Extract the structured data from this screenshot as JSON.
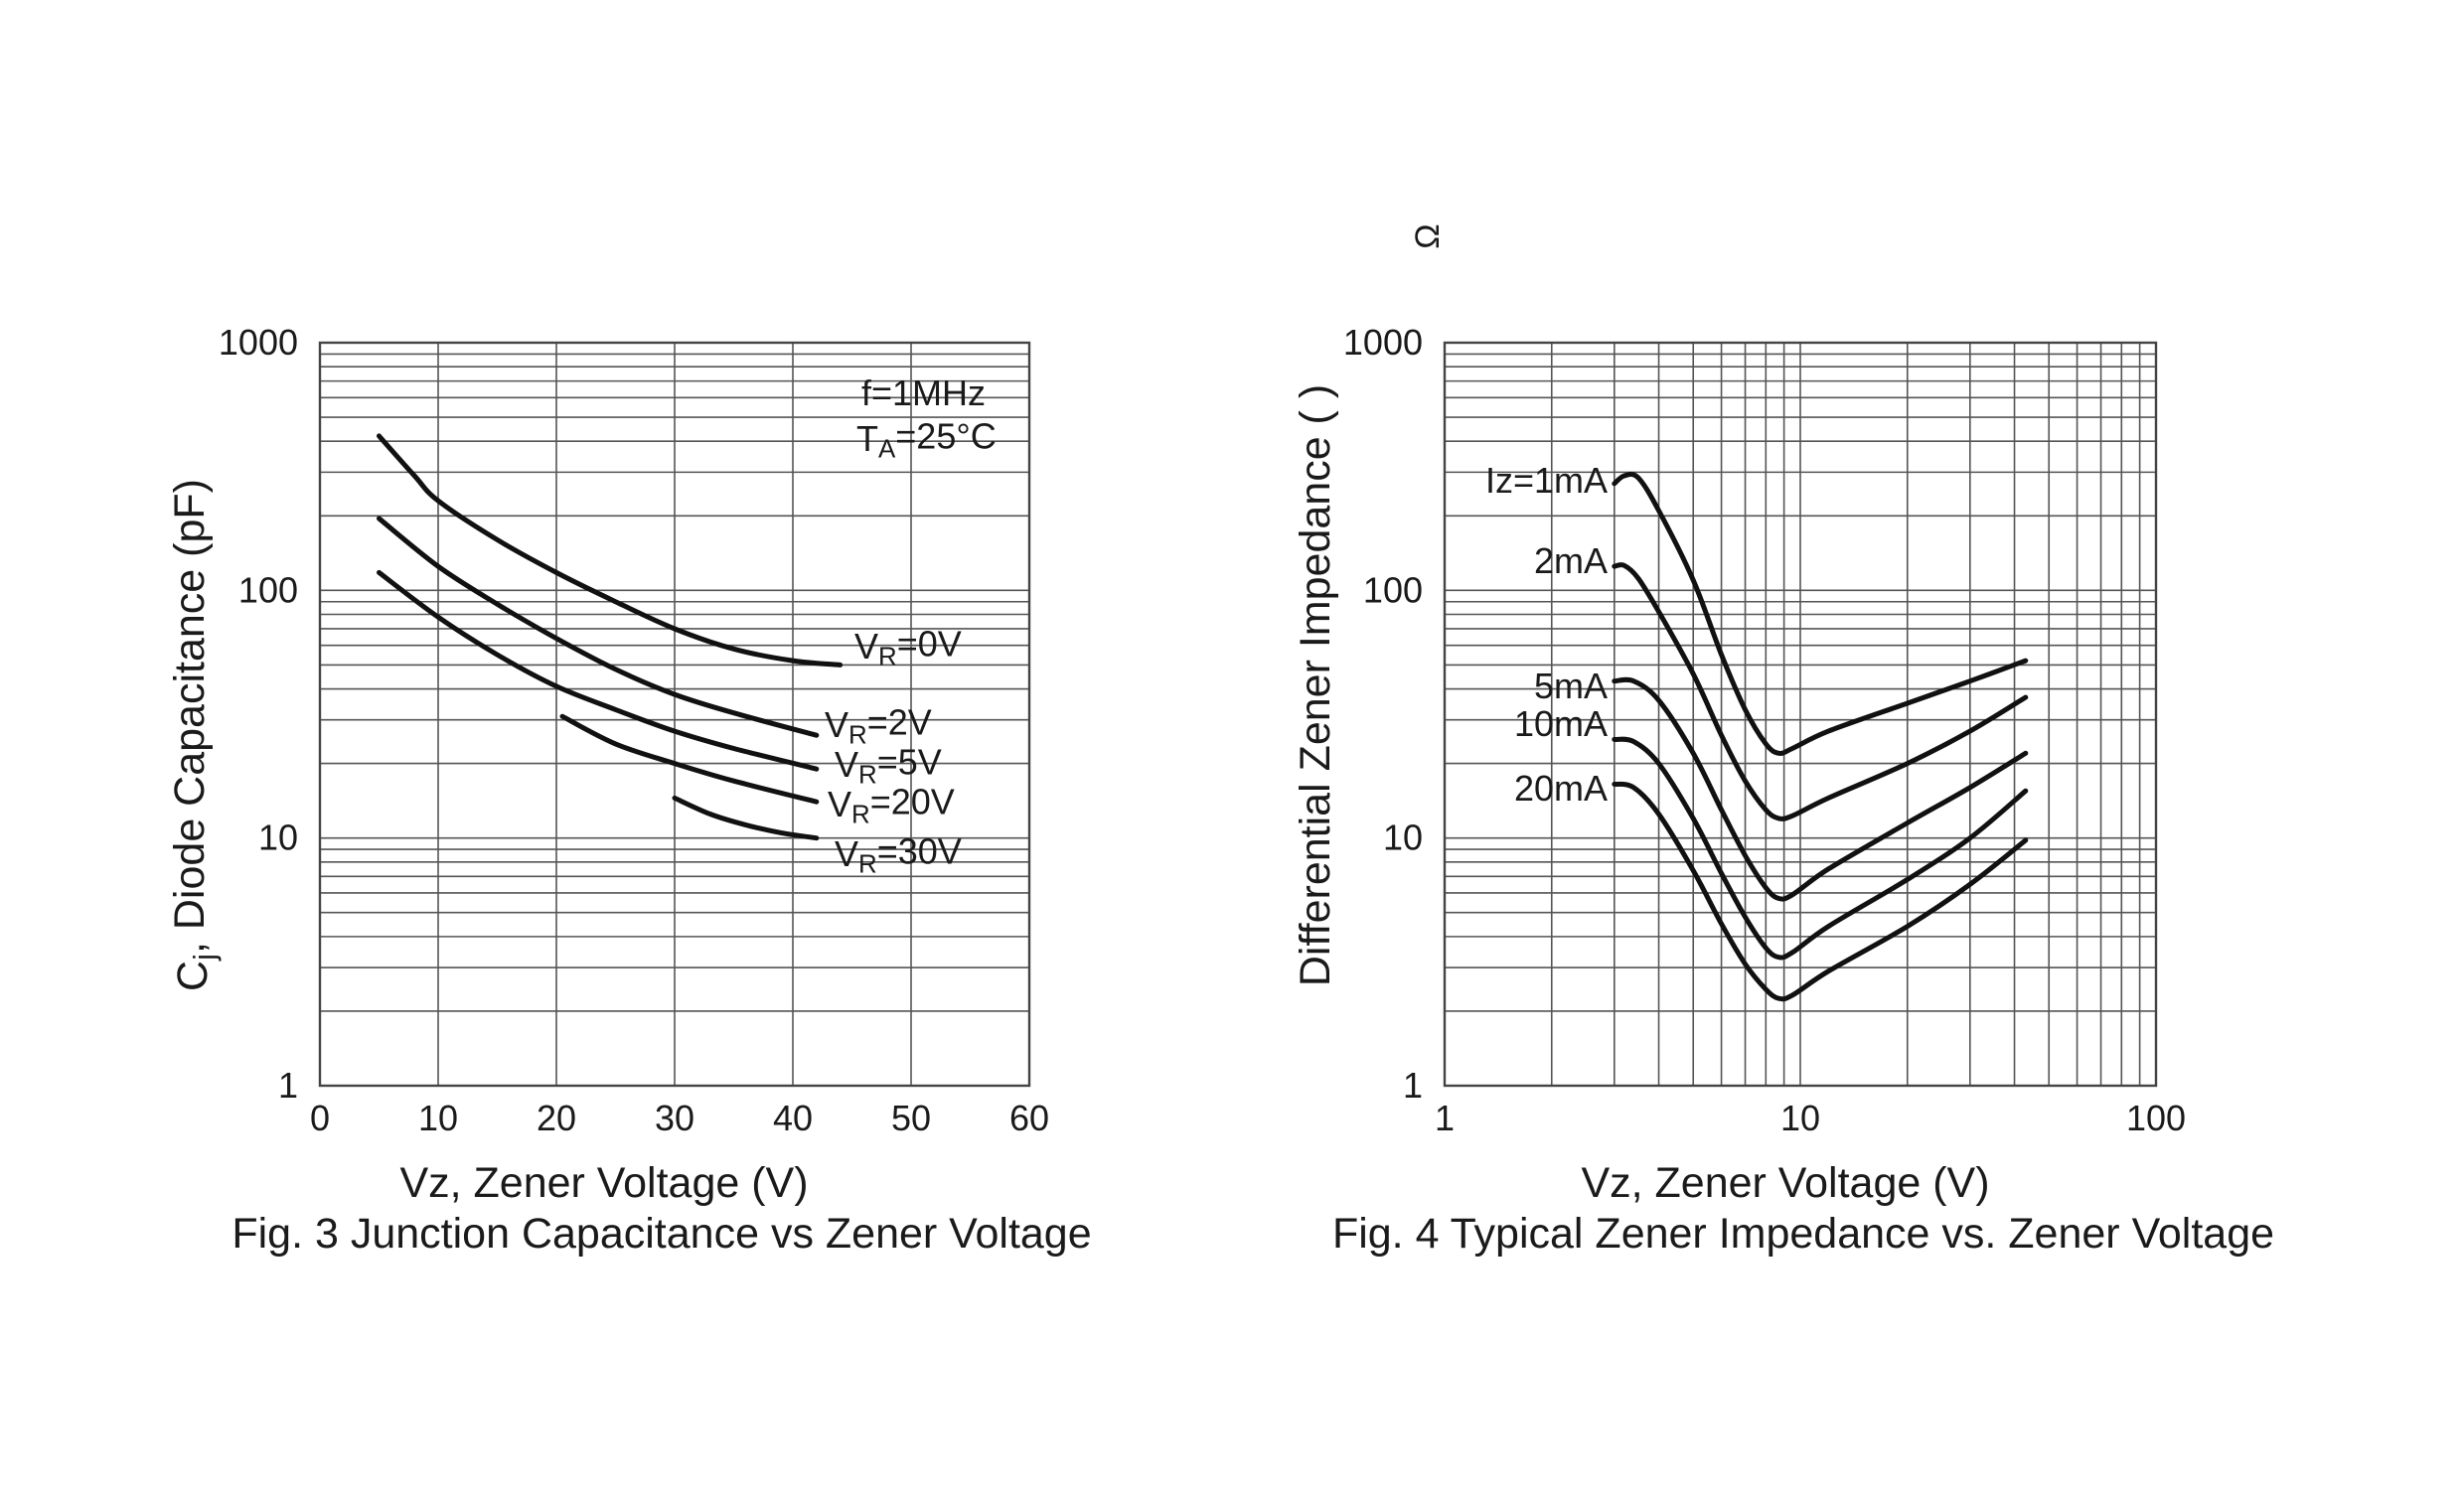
{
  "chart_data": [
    {
      "type": "line",
      "title": "Fig. 3 Junction Capacitance vs Zener Voltage",
      "xlabel": "Vz, Zener Voltage (V)",
      "ylabel": "Cj, Diode Capacitance (pF)",
      "ylabel_main": "C",
      "ylabel_sub": "j",
      "ylabel_rest": ", Diode Capacitance (pF)",
      "x_scale": "linear",
      "y_scale": "log",
      "xlim": [
        0,
        60
      ],
      "ylim": [
        1,
        1000
      ],
      "x_ticks": [
        "0",
        "10",
        "20",
        "30",
        "40",
        "50",
        "60"
      ],
      "y_ticks": [
        "1",
        "10",
        "100",
        "1000"
      ],
      "grid": true,
      "annotations": [
        {
          "line1": "f=1MHz",
          "line2_main": "T",
          "line2_sub": "A",
          "line2_rest": "=25°C"
        }
      ],
      "series": [
        {
          "name": "VR=0V",
          "label_main": "V",
          "label_sub": "R",
          "label_rest": "=0V",
          "x": [
            5,
            8,
            10,
            15,
            20,
            25,
            30,
            35,
            40,
            44
          ],
          "y": [
            420,
            290,
            230,
            160,
            118,
            90,
            70,
            58,
            52,
            50
          ]
        },
        {
          "name": "VR=2V",
          "label_main": "V",
          "label_sub": "R",
          "label_rest": "=2V",
          "x": [
            5,
            10,
            15,
            20,
            25,
            30,
            35,
            42
          ],
          "y": [
            195,
            125,
            88,
            64,
            48,
            38,
            32,
            26
          ]
        },
        {
          "name": "VR=5V",
          "label_main": "V",
          "label_sub": "R",
          "label_rest": "=5V",
          "x": [
            5,
            10,
            15,
            20,
            25,
            30,
            35,
            42
          ],
          "y": [
            118,
            78,
            55,
            41,
            33,
            27,
            23,
            19
          ]
        },
        {
          "name": "VR=20V",
          "label_main": "V",
          "label_sub": "R",
          "label_rest": "=20V",
          "x": [
            20.5,
            25,
            30,
            35,
            42
          ],
          "y": [
            31,
            24,
            20,
            17,
            14
          ]
        },
        {
          "name": "VR=30V",
          "label_main": "V",
          "label_sub": "R",
          "label_rest": "=30V",
          "x": [
            30,
            33,
            36,
            39,
            42
          ],
          "y": [
            14.5,
            12.5,
            11.3,
            10.5,
            10
          ]
        }
      ]
    },
    {
      "type": "line",
      "title": "Fig. 4 Typical Zener Impedance vs. Zener Voltage",
      "xlabel": "Vz, Zener Voltage (V)",
      "ylabel": "Differential Zener Impedance ( )",
      "ylabel_unit_mark": "Ω",
      "x_scale": "log",
      "y_scale": "log",
      "xlim": [
        1,
        100
      ],
      "ylim": [
        1,
        1000
      ],
      "x_ticks": [
        "1",
        "10",
        "100"
      ],
      "y_ticks": [
        "1",
        "10",
        "100",
        "1000"
      ],
      "grid": true,
      "series": [
        {
          "name": "Iz=1mA",
          "x": [
            3.0,
            3.2,
            3.5,
            4.0,
            5.0,
            6.0,
            7.0,
            8.0,
            8.7,
            9.5,
            12,
            20,
            30,
            43
          ],
          "y": [
            270,
            290,
            285,
            210,
            110,
            55,
            33,
            24,
            22,
            23,
            27,
            35,
            43,
            52
          ]
        },
        {
          "name": "2mA",
          "x": [
            3.0,
            3.2,
            3.5,
            4.0,
            5.0,
            6.0,
            7.0,
            8.0,
            8.7,
            9.5,
            12,
            20,
            30,
            43
          ],
          "y": [
            125,
            126,
            112,
            82,
            46,
            26,
            17,
            13,
            12,
            12.3,
            14.5,
            20,
            27,
            37
          ]
        },
        {
          "name": "5mA",
          "x": [
            3.0,
            3.4,
            4.0,
            5.0,
            6.0,
            7.0,
            8.0,
            8.7,
            9.5,
            12,
            20,
            30,
            43
          ],
          "y": [
            43,
            43,
            36,
            22,
            13,
            8.5,
            6.3,
            5.7,
            5.9,
            7.5,
            11.5,
            16,
            22
          ]
        },
        {
          "name": "10mA",
          "x": [
            3.0,
            3.4,
            4.0,
            5.0,
            6.0,
            7.0,
            8.0,
            8.7,
            9.5,
            12,
            20,
            30,
            43
          ],
          "y": [
            25,
            24.5,
            20,
            12,
            7.2,
            4.8,
            3.6,
            3.3,
            3.45,
            4.4,
            6.8,
            10,
            15.5
          ]
        },
        {
          "name": "20mA",
          "x": [
            3.0,
            3.4,
            4.0,
            5.0,
            6.0,
            7.0,
            8.0,
            8.7,
            9.5,
            12,
            20,
            30,
            43
          ],
          "y": [
            16.5,
            16,
            12.5,
            7.4,
            4.5,
            3.1,
            2.45,
            2.25,
            2.32,
            2.9,
            4.4,
            6.5,
            9.8
          ]
        }
      ]
    }
  ]
}
